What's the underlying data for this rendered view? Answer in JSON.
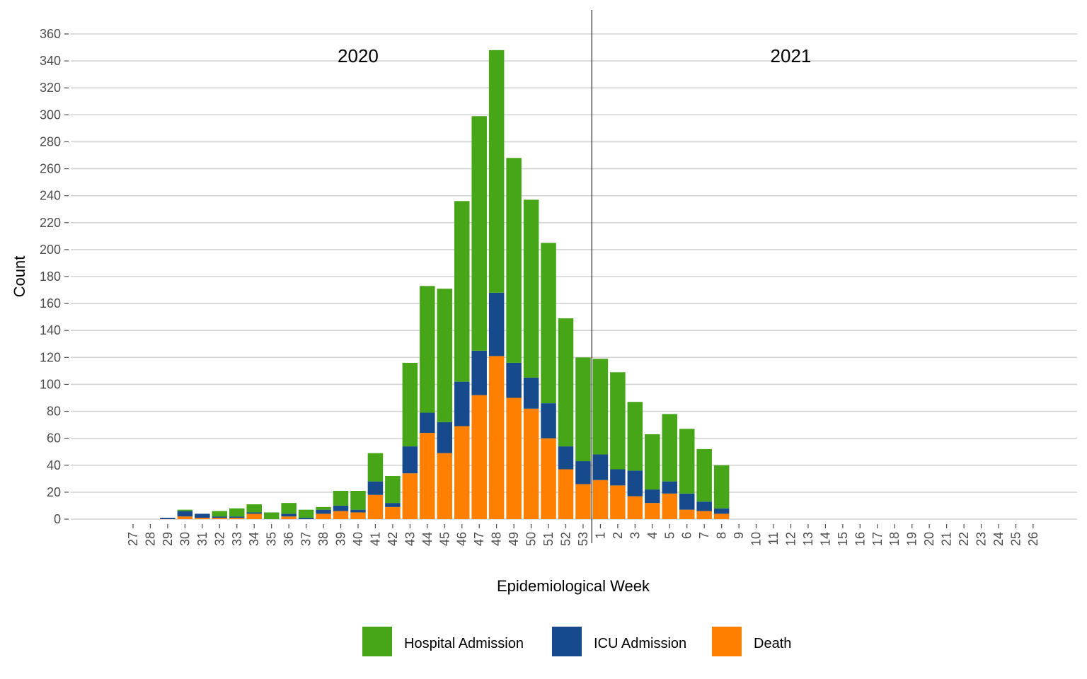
{
  "chart_data": {
    "type": "bar",
    "stacked": true,
    "xlabel": "Epidemiological Week",
    "ylabel": "Count",
    "ylim": [
      0,
      360
    ],
    "ytick_step": 20,
    "grid": "horizontal major",
    "legend_position": "bottom",
    "categories": [
      "27",
      "28",
      "29",
      "30",
      "31",
      "32",
      "33",
      "34",
      "35",
      "36",
      "37",
      "38",
      "39",
      "40",
      "41",
      "42",
      "43",
      "44",
      "45",
      "46",
      "47",
      "48",
      "49",
      "50",
      "51",
      "52",
      "53",
      "1",
      "2",
      "3",
      "4",
      "5",
      "6",
      "7",
      "8",
      "9",
      "10",
      "11",
      "12",
      "13",
      "14",
      "15",
      "16",
      "17",
      "18",
      "19",
      "20",
      "21",
      "22",
      "23",
      "24",
      "25",
      "26"
    ],
    "year_divider_after": "53",
    "annotations": [
      {
        "text": "2020",
        "x": "40"
      },
      {
        "text": "2021",
        "x": "12"
      }
    ],
    "series": [
      {
        "name": "Death",
        "color": "#FF7F00",
        "values": [
          0,
          0,
          0,
          2,
          1,
          1,
          1,
          4,
          0,
          2,
          0,
          4,
          6,
          5,
          18,
          9,
          34,
          64,
          49,
          69,
          92,
          121,
          90,
          82,
          60,
          37,
          26,
          29,
          25,
          17,
          12,
          19,
          7,
          6,
          4,
          0,
          0,
          0,
          0,
          0,
          0,
          0,
          0,
          0,
          0,
          0,
          0,
          0,
          0,
          0,
          0,
          0,
          0
        ]
      },
      {
        "name": "ICU Admission",
        "color": "#164A8C",
        "values": [
          0,
          0,
          1,
          4,
          3,
          1,
          1,
          1,
          0,
          2,
          1,
          3,
          4,
          2,
          10,
          3,
          20,
          15,
          23,
          33,
          33,
          47,
          26,
          23,
          26,
          17,
          17,
          19,
          12,
          19,
          10,
          9,
          12,
          7,
          4,
          0,
          0,
          0,
          0,
          0,
          0,
          0,
          0,
          0,
          0,
          0,
          0,
          0,
          0,
          0,
          0,
          0,
          0
        ]
      },
      {
        "name": "Hospital Admission",
        "color": "#47A518",
        "values": [
          0,
          0,
          0,
          1,
          0,
          4,
          6,
          6,
          5,
          8,
          6,
          2,
          11,
          14,
          21,
          20,
          62,
          94,
          99,
          134,
          174,
          180,
          152,
          132,
          119,
          95,
          77,
          71,
          72,
          51,
          41,
          50,
          48,
          39,
          32,
          0,
          0,
          0,
          0,
          0,
          0,
          0,
          0,
          0,
          0,
          0,
          0,
          0,
          0,
          0,
          0,
          0,
          0
        ]
      }
    ],
    "legend": [
      {
        "label": "Hospital Admission",
        "color": "#47A518"
      },
      {
        "label": "ICU Admission",
        "color": "#164A8C"
      },
      {
        "label": "Death",
        "color": "#FF7F00"
      }
    ]
  }
}
